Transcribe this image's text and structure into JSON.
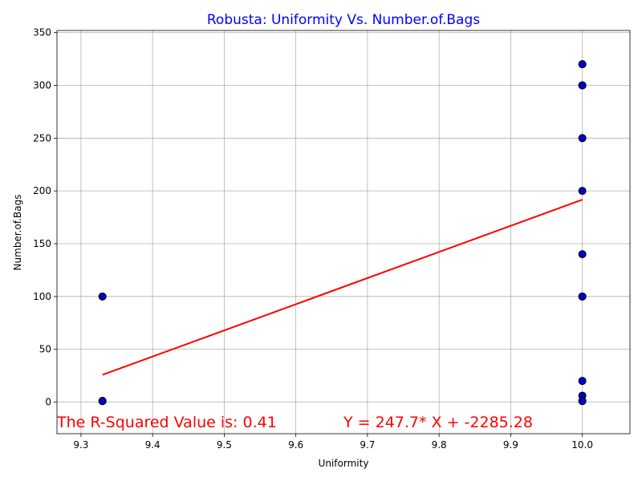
{
  "chart_data": {
    "type": "scatter",
    "title": "Robusta: Uniformity Vs. Number.of.Bags",
    "xlabel": "Uniformity",
    "ylabel": "Number.of.Bags",
    "xlim": [
      9.2665,
      10.0665
    ],
    "ylim": [
      -30,
      352
    ],
    "xticks": [
      "9.3",
      "9.4",
      "9.5",
      "9.6",
      "9.7",
      "9.8",
      "9.9",
      "10.0"
    ],
    "yticks": [
      "0",
      "50",
      "100",
      "150",
      "200",
      "250",
      "300",
      "350"
    ],
    "grid": true,
    "points": [
      {
        "x": 9.33,
        "y": 1
      },
      {
        "x": 9.33,
        "y": 1
      },
      {
        "x": 9.33,
        "y": 1
      },
      {
        "x": 9.33,
        "y": 100
      },
      {
        "x": 10.0,
        "y": 320
      },
      {
        "x": 10.0,
        "y": 320
      },
      {
        "x": 10.0,
        "y": 300
      },
      {
        "x": 10.0,
        "y": 300
      },
      {
        "x": 10.0,
        "y": 250
      },
      {
        "x": 10.0,
        "y": 200
      },
      {
        "x": 10.0,
        "y": 140
      },
      {
        "x": 10.0,
        "y": 100
      },
      {
        "x": 10.0,
        "y": 100
      },
      {
        "x": 10.0,
        "y": 20
      },
      {
        "x": 10.0,
        "y": 6
      },
      {
        "x": 10.0,
        "y": 1
      },
      {
        "x": 10.0,
        "y": 1
      }
    ],
    "regression": {
      "slope": 247.7,
      "intercept": -2285.28,
      "x_range": [
        9.33,
        10.0
      ]
    },
    "annotations": {
      "r_squared": "The R-Squared Value is: 0.41",
      "equation": "Y = 247.7* X + -2285.28"
    },
    "colors": {
      "title": "#0000ff",
      "marker_fill": "#0000cc",
      "marker_edge": "#000000",
      "line": "#ff0000",
      "annotation": "#ff0000",
      "grid": "#b0b0b0"
    }
  }
}
